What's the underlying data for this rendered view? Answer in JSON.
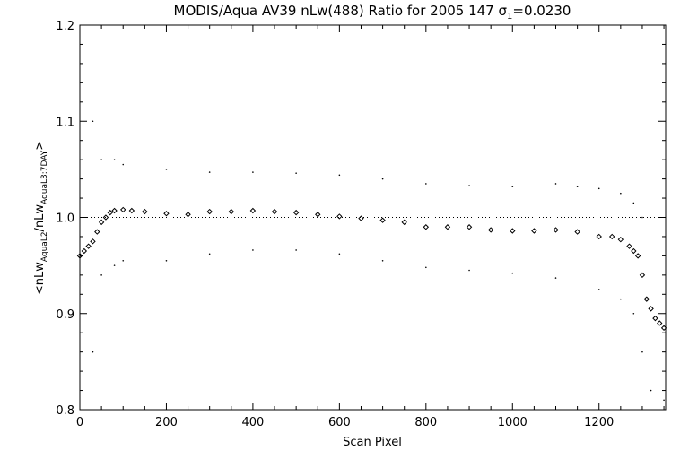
{
  "chart_data": {
    "type": "scatter",
    "title": {
      "main": "MODIS/Aqua AV39 nLw(488) Ratio for 2005 147 ",
      "sigma": "σ",
      "sigma_sub": "1",
      "sigma_value": "=0.0230"
    },
    "xlabel": "Scan Pixel",
    "ylabel": {
      "open": "<nLw",
      "sub1": "AquaL2",
      "mid": "/nLw",
      "sub2": "AquaL3:7DAY",
      "close": ">"
    },
    "xlim": [
      0,
      1354
    ],
    "ylim": [
      0.8,
      1.2
    ],
    "x_ticks": [
      0,
      200,
      400,
      600,
      800,
      1000,
      1200
    ],
    "x_tick_labels": [
      "0",
      "200",
      "400",
      "600",
      "800",
      "1000",
      "1200"
    ],
    "y_ticks": [
      0.8,
      0.9,
      1.0,
      1.1,
      1.2
    ],
    "y_tick_labels": [
      "0.8",
      "0.9",
      "1.0",
      "1.1",
      "1.2"
    ],
    "reference_line": {
      "y": 1.0,
      "style": "dotted"
    },
    "series": [
      {
        "role": "mean ratio",
        "marker": "diamond",
        "x": [
          0,
          10,
          20,
          30,
          40,
          50,
          60,
          70,
          80,
          100,
          120,
          150,
          200,
          250,
          300,
          350,
          400,
          450,
          500,
          550,
          600,
          650,
          700,
          750,
          800,
          850,
          900,
          950,
          1000,
          1050,
          1100,
          1150,
          1200,
          1230,
          1250,
          1270,
          1280,
          1290,
          1300,
          1310,
          1320,
          1330,
          1340,
          1350
        ],
        "y": [
          0.96,
          0.965,
          0.97,
          0.975,
          0.985,
          0.995,
          1.0,
          1.005,
          1.007,
          1.008,
          1.007,
          1.006,
          1.004,
          1.003,
          1.006,
          1.006,
          1.007,
          1.006,
          1.005,
          1.003,
          1.001,
          0.999,
          0.997,
          0.995,
          0.99,
          0.99,
          0.99,
          0.987,
          0.986,
          0.986,
          0.987,
          0.985,
          0.98,
          0.98,
          0.977,
          0.97,
          0.965,
          0.96,
          0.94,
          0.915,
          0.905,
          0.895,
          0.89,
          0.885
        ]
      },
      {
        "role": "upper envelope",
        "marker": "dot",
        "x": [
          30,
          50,
          80,
          100,
          200,
          300,
          400,
          500,
          600,
          700,
          800,
          900,
          1000,
          1100,
          1150,
          1200,
          1250,
          1280,
          1300
        ],
        "y": [
          1.1,
          1.06,
          1.06,
          1.055,
          1.05,
          1.047,
          1.047,
          1.046,
          1.044,
          1.04,
          1.035,
          1.033,
          1.032,
          1.035,
          1.032,
          1.03,
          1.025,
          1.015,
          1.0
        ]
      },
      {
        "role": "lower envelope",
        "marker": "dot",
        "x": [
          30,
          50,
          80,
          100,
          200,
          300,
          400,
          500,
          600,
          700,
          800,
          900,
          1000,
          1100,
          1200,
          1250,
          1280,
          1300,
          1320,
          1350
        ],
        "y": [
          0.86,
          0.94,
          0.95,
          0.955,
          0.955,
          0.962,
          0.966,
          0.966,
          0.962,
          0.955,
          0.948,
          0.945,
          0.942,
          0.937,
          0.925,
          0.915,
          0.9,
          0.86,
          0.82,
          0.81
        ]
      }
    ]
  }
}
